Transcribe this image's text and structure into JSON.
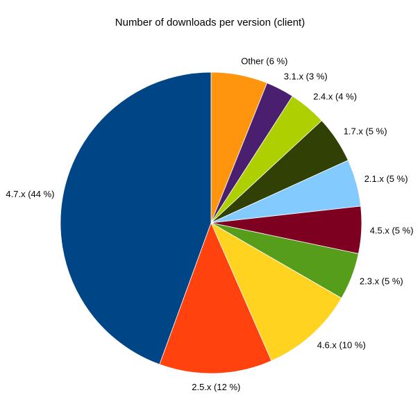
{
  "chart_data": {
    "type": "pie",
    "title": "Number of downloads per version (client)",
    "legend": "none",
    "start_angle_deg": 0,
    "direction": "clockwise",
    "value_unit": "%",
    "slices": [
      {
        "name": "Other",
        "label": "Other (6 %)",
        "value": 6,
        "color": "#FF950E"
      },
      {
        "name": "3.1.x",
        "label": "3.1.x (3 %)",
        "value": 3,
        "color": "#4B1F6F"
      },
      {
        "name": "2.4.x",
        "label": "2.4.x (4 %)",
        "value": 4,
        "color": "#AECF00"
      },
      {
        "name": "1.7.x",
        "label": "1.7.x (5 %)",
        "value": 5,
        "color": "#314004"
      },
      {
        "name": "2.1.x",
        "label": "2.1.x (5 %)",
        "value": 5,
        "color": "#83CAFF"
      },
      {
        "name": "4.5.x",
        "label": "4.5.x (5 %)",
        "value": 5,
        "color": "#7E0021"
      },
      {
        "name": "2.3.x",
        "label": "2.3.x (5 %)",
        "value": 5,
        "color": "#579D1C"
      },
      {
        "name": "4.6.x",
        "label": "4.6.x (10 %)",
        "value": 10,
        "color": "#FFD320"
      },
      {
        "name": "2.5.x",
        "label": "2.5.x (12 %)",
        "value": 12,
        "color": "#FF420E"
      },
      {
        "name": "4.7.x",
        "label": "4.7.x (44 %)",
        "value": 44,
        "color": "#004586"
      }
    ]
  }
}
